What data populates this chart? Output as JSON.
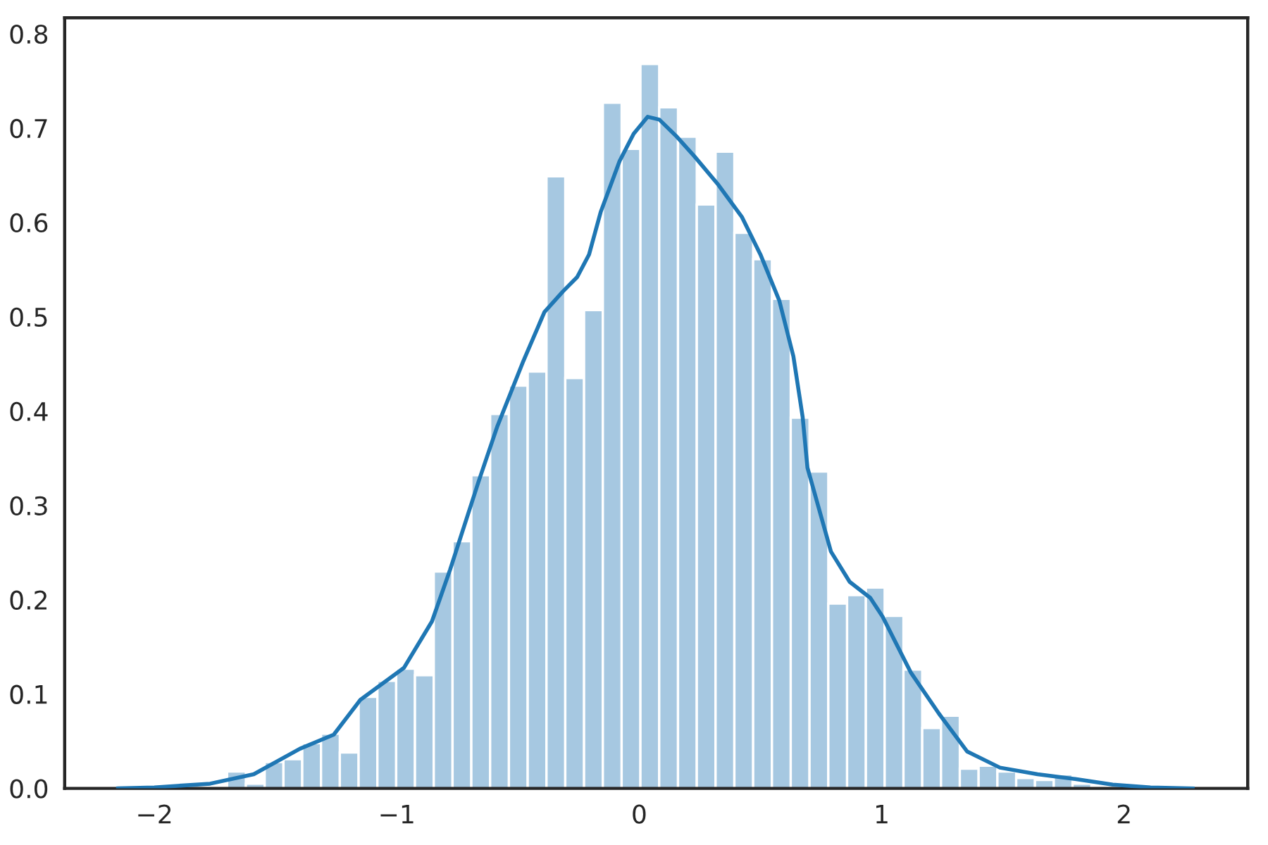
{
  "chart_data": {
    "type": "histogram",
    "series": [
      {
        "color": "#a6c8e1",
        "bins": [
          -1.7,
          -1.6225,
          -1.545,
          -1.4675,
          -1.39,
          -1.3125,
          -1.235,
          -1.1575,
          -1.08,
          -1.0025,
          -0.925,
          -0.8475,
          -0.77,
          -0.6925,
          -0.615,
          -0.5375,
          -0.46,
          -0.3825,
          -0.305,
          -0.2275,
          -0.15,
          -0.0725,
          0.005,
          0.0825,
          0.16,
          0.2375,
          0.315,
          0.3925,
          0.47,
          0.5475,
          0.625,
          0.7025,
          0.78,
          0.8575,
          0.935,
          1.0125,
          1.09,
          1.1675,
          1.245,
          1.3225,
          1.4,
          1.4775,
          1.555,
          1.6325,
          1.71,
          1.7875,
          1.865,
          1.9425,
          2.02,
          2.0975,
          2.175
        ],
        "values": [
          0.018,
          0.005,
          0.028,
          0.031,
          0.048,
          0.058,
          0.038,
          0.097,
          0.114,
          0.127,
          0.12,
          0.23,
          0.262,
          0.332,
          0.397,
          0.427,
          0.442,
          0.649,
          0.435,
          0.507,
          0.727,
          0.678,
          0.768,
          0.722,
          0.691,
          0.619,
          0.675,
          0.589,
          0.561,
          0.519,
          0.393,
          0.336,
          0.196,
          0.205,
          0.213,
          0.183,
          0.126,
          0.064,
          0.077,
          0.021,
          0.024,
          0.018,
          0.011,
          0.009,
          0.015,
          0.005,
          null,
          null,
          null,
          null
        ]
      },
      {
        "type": "line",
        "color": "#1f77b4",
        "x": [
          -2.15,
          -2.0,
          -1.77,
          -1.59,
          -1.4,
          -1.26,
          -1.15,
          -0.97,
          -0.855,
          -0.78,
          -0.663,
          -0.585,
          -0.478,
          -0.391,
          -0.314,
          -0.256,
          -0.207,
          -0.159,
          -0.081,
          -0.023,
          0.035,
          0.083,
          0.151,
          0.228,
          0.326,
          0.423,
          0.5,
          0.578,
          0.636,
          0.674,
          0.694,
          0.791,
          0.868,
          0.953,
          1.004,
          1.12,
          1.237,
          1.353,
          1.488,
          1.643,
          1.798,
          1.953,
          2.109,
          2.283
        ],
        "values": [
          0.0,
          0.001,
          0.005,
          0.015,
          0.042,
          0.057,
          0.094,
          0.128,
          0.177,
          0.232,
          0.325,
          0.384,
          0.453,
          0.505,
          0.527,
          0.542,
          0.566,
          0.611,
          0.665,
          0.694,
          0.712,
          0.709,
          0.692,
          0.67,
          0.64,
          0.606,
          0.566,
          0.517,
          0.458,
          0.394,
          0.34,
          0.251,
          0.219,
          0.202,
          0.182,
          0.123,
          0.079,
          0.039,
          0.022,
          0.015,
          0.01,
          0.004,
          0.001,
          0.0
        ]
      }
    ],
    "xlim": [
      -2.37,
      2.51
    ],
    "ylim": [
      0,
      0.817
    ],
    "xticks": [
      -2,
      -1,
      0,
      1,
      2
    ],
    "yticks": [
      {
        "value": 0,
        "label": "0.0"
      },
      0.1,
      0.2,
      0.3,
      0.4,
      0.5,
      0.6,
      0.7,
      0.8
    ],
    "grid": false
  }
}
